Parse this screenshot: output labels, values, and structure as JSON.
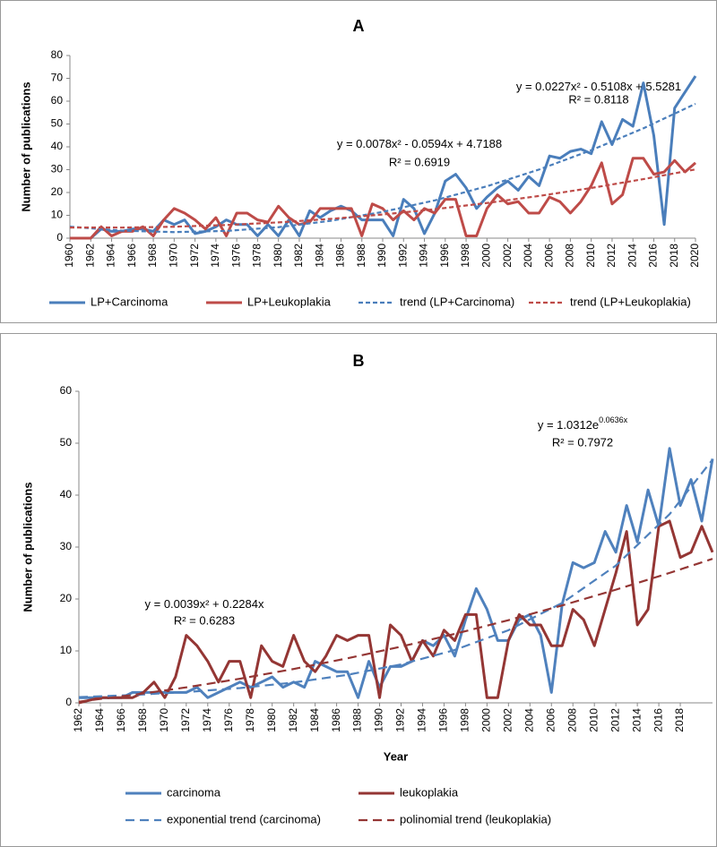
{
  "chart_data": [
    {
      "type": "line",
      "title": "A",
      "ylabel": "Number of publications",
      "x": [
        1960,
        1961,
        1962,
        1963,
        1964,
        1965,
        1966,
        1967,
        1968,
        1969,
        1970,
        1971,
        1972,
        1973,
        1974,
        1975,
        1976,
        1977,
        1978,
        1979,
        1980,
        1981,
        1982,
        1983,
        1984,
        1985,
        1986,
        1987,
        1988,
        1989,
        1990,
        1991,
        1992,
        1993,
        1994,
        1995,
        1996,
        1997,
        1998,
        1999,
        2000,
        2001,
        2002,
        2003,
        2004,
        2005,
        2006,
        2007,
        2008,
        2009,
        2010,
        2011,
        2012,
        2013,
        2014,
        2015,
        2016,
        2017,
        2018,
        2019,
        2020
      ],
      "series": [
        {
          "name": "LP+Carcinoma",
          "color": "#4a7ebb",
          "style": "solid",
          "values": [
            0,
            0,
            0,
            4,
            3,
            3,
            4,
            4,
            3,
            8,
            6,
            8,
            2,
            3,
            5,
            8,
            6,
            6,
            1,
            6,
            1,
            8,
            1,
            12,
            9,
            12,
            14,
            12,
            8,
            8,
            8,
            1,
            17,
            13,
            2,
            11,
            25,
            28,
            22,
            13,
            18,
            22,
            25,
            21,
            27,
            23,
            36,
            35,
            38,
            39,
            37,
            51,
            41,
            52,
            49,
            68,
            45,
            6,
            57,
            64,
            71
          ]
        },
        {
          "name": "LP+Leukoplakia",
          "color": "#be4b48",
          "style": "solid",
          "values": [
            0,
            0,
            0,
            5,
            1,
            3,
            3,
            5,
            1,
            8,
            13,
            11,
            8,
            4,
            9,
            1,
            11,
            11,
            8,
            7,
            14,
            9,
            6,
            7,
            13,
            13,
            13,
            13,
            1,
            15,
            13,
            8,
            12,
            8,
            13,
            11,
            17,
            17,
            1,
            1,
            13,
            19,
            15,
            16,
            11,
            11,
            18,
            16,
            11,
            16,
            23,
            33,
            15,
            19,
            35,
            35,
            28,
            29,
            34,
            29,
            33
          ]
        },
        {
          "name": "trend (LP+Carcinoma)",
          "color": "#4a7ebb",
          "style": "dashed",
          "x": [
            1960,
            1965,
            1970,
            1975,
            1980,
            1985,
            1990,
            1995,
            2000,
            2005,
            2010,
            2015,
            2020
          ],
          "values": [
            5.04,
            3.28,
            2.66,
            3.17,
            4.81,
            7.59,
            11.51,
            16.56,
            22.74,
            30.06,
            38.52,
            48.11,
            58.84
          ]
        },
        {
          "name": "trend (LP+Leukoplakia)",
          "color": "#be4b48",
          "style": "dashed",
          "x": [
            1960,
            1965,
            1970,
            1975,
            1980,
            1985,
            1990,
            1995,
            2000,
            2005,
            2010,
            2015,
            2020
          ],
          "values": [
            4.67,
            4.64,
            5.01,
            5.77,
            6.91,
            8.45,
            10.37,
            12.69,
            15.4,
            18.49,
            21.98,
            25.85,
            30.12
          ]
        }
      ],
      "xlim": [
        1960,
        2020
      ],
      "xticks": [
        1960,
        1962,
        1964,
        1966,
        1968,
        1970,
        1972,
        1974,
        1976,
        1978,
        1980,
        1982,
        1984,
        1986,
        1988,
        1990,
        1992,
        1994,
        1996,
        1998,
        2000,
        2002,
        2004,
        2006,
        2008,
        2010,
        2012,
        2014,
        2016,
        2018,
        2020
      ],
      "ylim": [
        0,
        80
      ],
      "yticks": [
        0,
        10,
        20,
        30,
        40,
        50,
        60,
        70,
        80
      ],
      "grid": false,
      "annotations": [
        {
          "equation": "y = 0.0227x² - 0.5108x + 5.5281",
          "r2": "R² = 0.8118"
        },
        {
          "equation": "y = 0.0078x² - 0.0594x + 4.7188",
          "r2": "R² = 0.6919"
        }
      ]
    },
    {
      "type": "line",
      "title": "B",
      "ylabel": "Number of publications",
      "xlabel": "Year",
      "x": [
        1962,
        1963,
        1964,
        1965,
        1966,
        1967,
        1968,
        1969,
        1970,
        1971,
        1972,
        1973,
        1974,
        1975,
        1976,
        1977,
        1978,
        1979,
        1980,
        1981,
        1982,
        1983,
        1984,
        1985,
        1986,
        1987,
        1988,
        1989,
        1990,
        1991,
        1992,
        1993,
        1994,
        1995,
        1996,
        1997,
        1998,
        1999,
        2000,
        2001,
        2002,
        2003,
        2004,
        2005,
        2006,
        2007,
        2008,
        2009,
        2010,
        2011,
        2012,
        2013,
        2014,
        2015,
        2016,
        2017,
        2018,
        2019,
        2020,
        2021
      ],
      "series": [
        {
          "name": "carcinoma",
          "color": "#4f81bd",
          "style": "solid",
          "values": [
            1,
            1,
            1,
            1,
            1,
            2,
            2,
            2,
            2,
            2,
            2,
            3,
            1,
            2,
            3,
            4,
            3,
            4,
            5,
            3,
            4,
            3,
            8,
            7,
            6,
            6,
            1,
            8,
            3,
            7,
            7,
            8,
            12,
            11,
            13,
            9,
            16,
            22,
            18,
            12,
            12,
            16,
            17,
            13,
            2,
            19,
            27,
            26,
            27,
            33,
            29,
            38,
            31,
            41,
            34,
            49,
            38,
            43,
            35,
            47
          ]
        },
        {
          "name": "leukoplakia",
          "color": "#943634",
          "style": "solid",
          "values": [
            0,
            0.5,
            1,
            1,
            1,
            1,
            2,
            4,
            1,
            5,
            13,
            11,
            8,
            4,
            8,
            8,
            1,
            11,
            8,
            7,
            13,
            8,
            6,
            9,
            13,
            12,
            13,
            13,
            1,
            15,
            13,
            8,
            12,
            9,
            14,
            12,
            17,
            17,
            1,
            1,
            12,
            17,
            15,
            15,
            11,
            11,
            18,
            16,
            11,
            18,
            25,
            33,
            15,
            18,
            34,
            35,
            28,
            29,
            34,
            29
          ]
        },
        {
          "name": "exponential trend (carcinoma)",
          "color": "#4f81bd",
          "style": "longdash",
          "x": [
            1962,
            1967,
            1972,
            1977,
            1982,
            1987,
            1992,
            1997,
            2002,
            2007,
            2012,
            2017,
            2021
          ],
          "values": [
            1.1,
            1.51,
            2.08,
            2.85,
            3.92,
            5.39,
            7.41,
            10.18,
            13.99,
            19.23,
            26.43,
            36.32,
            46.84
          ]
        },
        {
          "name": "polinomial trend (leukoplakia)",
          "color": "#943634",
          "style": "longdash",
          "x": [
            1962,
            1967,
            1972,
            1977,
            1982,
            1987,
            1992,
            1997,
            2002,
            2007,
            2012,
            2017,
            2021
          ],
          "values": [
            0.23,
            1.51,
            2.98,
            4.65,
            6.52,
            8.57,
            10.83,
            13.28,
            15.92,
            18.76,
            21.79,
            25.02,
            27.74
          ]
        }
      ],
      "xlim": [
        1962,
        2021
      ],
      "xticks": [
        1962,
        1964,
        1966,
        1968,
        1970,
        1972,
        1974,
        1976,
        1978,
        1980,
        1982,
        1984,
        1986,
        1988,
        1990,
        1992,
        1994,
        1996,
        1998,
        2000,
        2002,
        2004,
        2006,
        2008,
        2010,
        2012,
        2014,
        2016,
        2018
      ],
      "ylim": [
        0,
        60
      ],
      "yticks": [
        0,
        10,
        20,
        30,
        40,
        50,
        60
      ],
      "grid": false,
      "annotations": [
        {
          "equation": "y = 1.0312e",
          "exponent": "0.0636x",
          "r2": "R² = 0.7972"
        },
        {
          "equation": "y = 0.0039x² + 0.2284x",
          "r2": "R² = 0.6283"
        }
      ]
    }
  ]
}
